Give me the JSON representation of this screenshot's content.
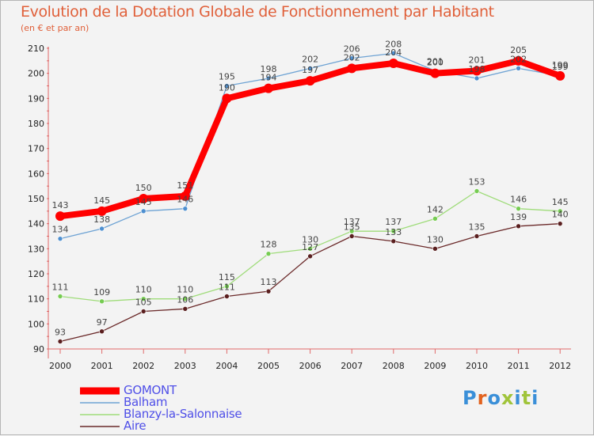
{
  "chart_data": {
    "type": "line",
    "title": "Evolution de la Dotation Globale de Fonctionnement par Habitant",
    "subtitle": "(en € et par an)",
    "xlabel": "",
    "ylabel": "",
    "categories": [
      "2000",
      "2001",
      "2002",
      "2003",
      "2004",
      "2005",
      "2006",
      "2007",
      "2008",
      "2009",
      "2010",
      "2011",
      "2012"
    ],
    "ylim": [
      90,
      210
    ],
    "yticks": [
      90,
      100,
      110,
      120,
      130,
      140,
      150,
      160,
      170,
      180,
      190,
      200,
      210
    ],
    "grid": false,
    "legend_position": "bottom-left",
    "series": [
      {
        "name": "GOMONT",
        "color": "#ff0000",
        "values": [
          143,
          145,
          150,
          151,
          190,
          194,
          197,
          202,
          204,
          200,
          201,
          205,
          199
        ]
      },
      {
        "name": "Balham",
        "color": "#6ea3d4",
        "values": [
          134,
          138,
          145,
          146,
          195,
          198,
          202,
          206,
          208,
          201,
          198,
          202,
          199
        ]
      },
      {
        "name": "Blanzy-la-Salonnaise",
        "color": "#9fdc7a",
        "values": [
          111,
          109,
          110,
          110,
          115,
          128,
          130,
          137,
          137,
          142,
          153,
          146,
          145
        ]
      },
      {
        "name": "Aire",
        "color": "#6b2a2a",
        "values": [
          93,
          97,
          105,
          106,
          111,
          113,
          127,
          135,
          133,
          130,
          135,
          139,
          140
        ]
      }
    ]
  },
  "brand": {
    "text": "Proxiti",
    "colors": [
      "#3a8fd8",
      "#e2621e",
      "#3a8fd8",
      "#a0c43a",
      "#3a8fd8",
      "#a0c43a",
      "#3a8fd8"
    ]
  }
}
